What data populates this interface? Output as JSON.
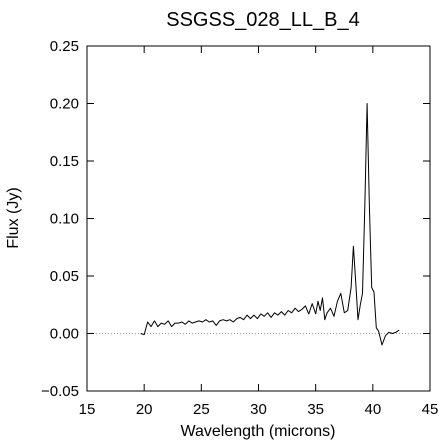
{
  "chart_data": {
    "type": "line",
    "title": "SSGSS_028_LL_B_4",
    "xlabel": "Wavelength (microns)",
    "ylabel": "Flux (Jy)",
    "xlim": [
      15,
      45
    ],
    "ylim": [
      -0.05,
      0.25
    ],
    "xticks": [
      15,
      20,
      25,
      30,
      35,
      40,
      45
    ],
    "yticks": [
      -0.05,
      0.0,
      0.05,
      0.1,
      0.15,
      0.2,
      0.25
    ],
    "xtick_labels": [
      "15",
      "20",
      "25",
      "30",
      "35",
      "40",
      "45"
    ],
    "ytick_labels": [
      "−0.05",
      "0.00",
      "0.05",
      "0.10",
      "0.15",
      "0.20",
      "0.25"
    ],
    "grid": false,
    "reference_line": {
      "y": 0.0,
      "style": "dotted",
      "color": "#999999"
    },
    "series": [
      {
        "color": "#000000",
        "x": [
          19.7,
          20.0,
          20.3,
          20.6,
          20.9,
          21.2,
          21.5,
          21.8,
          22.1,
          22.4,
          22.7,
          23.0,
          23.3,
          23.6,
          23.9,
          24.2,
          24.5,
          24.8,
          25.1,
          25.4,
          25.7,
          26.0,
          26.3,
          26.6,
          26.9,
          27.2,
          27.5,
          27.8,
          28.1,
          28.4,
          28.7,
          29.0,
          29.3,
          29.6,
          29.9,
          30.2,
          30.5,
          30.8,
          31.1,
          31.4,
          31.7,
          32.0,
          32.3,
          32.6,
          32.9,
          33.2,
          33.5,
          33.8,
          34.1,
          34.4,
          34.7,
          35.0,
          35.2,
          35.4,
          35.6,
          35.8,
          36.0,
          36.3,
          36.6,
          36.9,
          37.2,
          37.5,
          37.8,
          38.1,
          38.3,
          38.5,
          38.7,
          38.9,
          39.1,
          39.3,
          39.5,
          39.7,
          39.9,
          40.1,
          40.3,
          40.5,
          40.8,
          41.1,
          41.4,
          41.7,
          42.0,
          42.3
        ],
        "y": [
          0.0,
          -0.001,
          0.01,
          0.006,
          0.011,
          0.006,
          0.009,
          0.008,
          0.011,
          0.006,
          0.009,
          0.009,
          0.01,
          0.008,
          0.011,
          0.009,
          0.01,
          0.011,
          0.01,
          0.012,
          0.01,
          0.011,
          0.007,
          0.011,
          0.012,
          0.011,
          0.012,
          0.01,
          0.013,
          0.014,
          0.012,
          0.016,
          0.013,
          0.016,
          0.013,
          0.017,
          0.015,
          0.018,
          0.014,
          0.018,
          0.016,
          0.019,
          0.016,
          0.02,
          0.018,
          0.022,
          0.019,
          0.021,
          0.024,
          0.017,
          0.026,
          0.017,
          0.028,
          0.02,
          0.031,
          0.012,
          0.018,
          0.022,
          0.015,
          0.028,
          0.035,
          0.018,
          0.02,
          0.04,
          0.076,
          0.045,
          0.012,
          0.025,
          0.035,
          0.11,
          0.2,
          0.11,
          0.04,
          0.036,
          0.005,
          0.002,
          -0.01,
          -0.002,
          0.001,
          0.0,
          0.001,
          0.003
        ]
      }
    ]
  }
}
